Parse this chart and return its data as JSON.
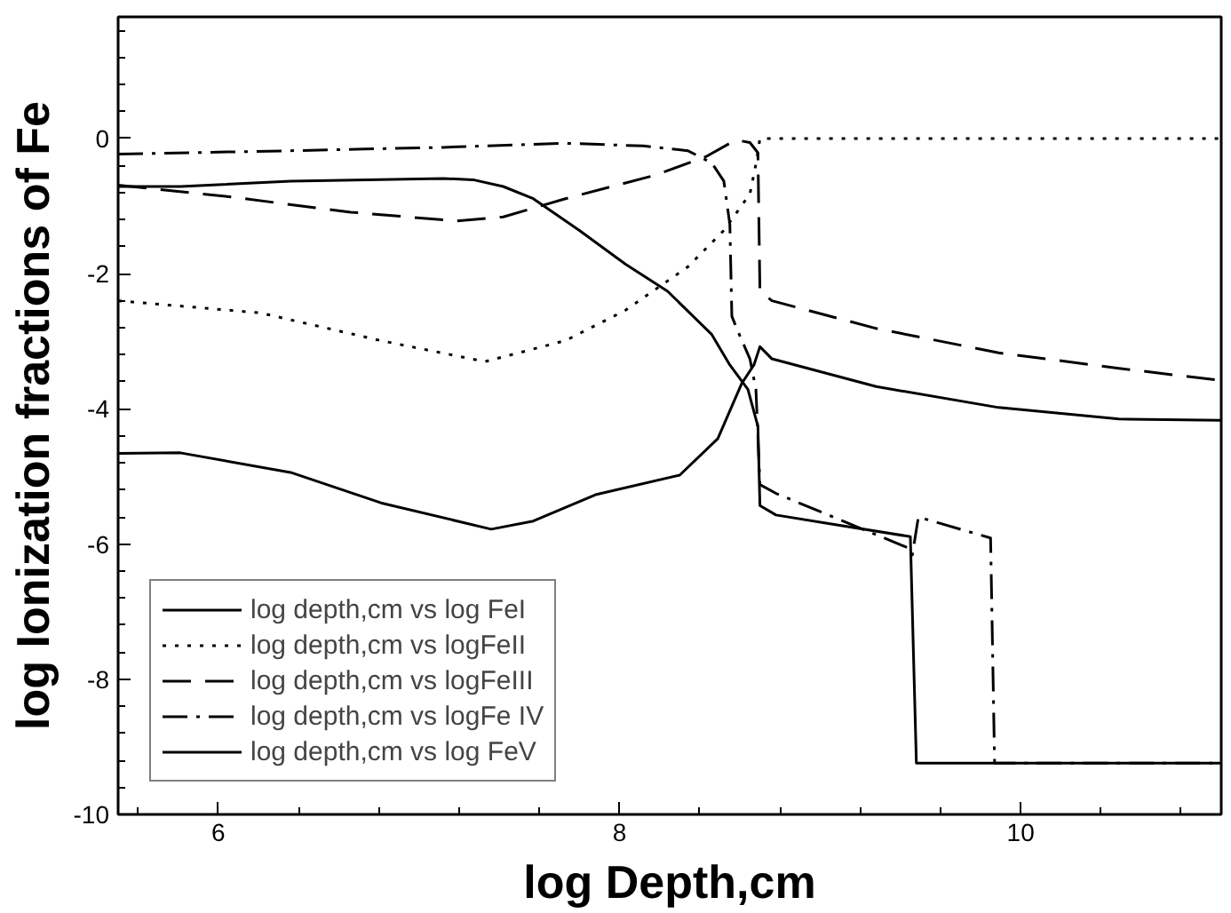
{
  "chart_data": {
    "type": "line",
    "xlabel": "log Depth,cm",
    "ylabel": "log Ionization fractions of Fe",
    "xlim": [
      5.5,
      11
    ],
    "ylim": [
      -10,
      1.8
    ],
    "xticks": [
      {
        "value": 5.6,
        "label": null
      },
      6,
      {
        "value": 6.4,
        "label": null
      },
      {
        "value": 6.8,
        "label": null
      },
      {
        "value": 7.2,
        "label": null
      },
      {
        "value": 7.6,
        "label": null
      },
      8,
      {
        "value": 8.4,
        "label": null
      },
      {
        "value": 8.8,
        "label": null
      },
      {
        "value": 9.2,
        "label": null
      },
      {
        "value": 9.6,
        "label": null
      },
      10,
      {
        "value": 10.4,
        "label": null
      },
      {
        "value": 10.8,
        "label": null
      }
    ],
    "yticks": [
      -10,
      {
        "value": -9.6,
        "label": null
      },
      {
        "value": -9.2,
        "label": null
      },
      -8,
      {
        "value": -8.8,
        "label": null
      },
      {
        "value": -8.4,
        "label": null
      },
      {
        "value": -7.6,
        "label": null
      },
      {
        "value": -7.2,
        "label": null
      },
      -6,
      {
        "value": -6.8,
        "label": null
      },
      {
        "value": -6.4,
        "label": null
      },
      {
        "value": -5.6,
        "label": null
      },
      {
        "value": -5.2,
        "label": null
      },
      -4,
      {
        "value": -4.8,
        "label": null
      },
      {
        "value": -4.4,
        "label": null
      },
      {
        "value": -3.6,
        "label": null
      },
      {
        "value": -3.2,
        "label": null
      },
      -2,
      {
        "value": -2.8,
        "label": null
      },
      {
        "value": -2.4,
        "label": null
      },
      {
        "value": -1.6,
        "label": null
      },
      {
        "value": -1.2,
        "label": null
      },
      0,
      {
        "value": -0.8,
        "label": null
      },
      {
        "value": -0.4,
        "label": null
      },
      {
        "value": 0.4,
        "label": null
      },
      {
        "value": 0.8,
        "label": null
      },
      {
        "value": 1.2,
        "label": null
      },
      {
        "value": 1.6,
        "label": null
      }
    ],
    "grid": false,
    "legend": "bottom left",
    "marker": "none",
    "series": [
      {
        "name": "log depth,cm vs log FeI",
        "color": "#000000",
        "line_style": "solid",
        "x": [
          5.5,
          5.81,
          6.36,
          6.81,
          7.36,
          7.57,
          7.88,
          8.3,
          8.49,
          8.61,
          8.67,
          8.7,
          8.76,
          9.28,
          9.89,
          10.49,
          11.0
        ],
        "values": [
          -4.66,
          -4.65,
          -4.94,
          -5.39,
          -5.78,
          -5.66,
          -5.27,
          -4.98,
          -4.44,
          -3.62,
          -3.35,
          -3.08,
          -3.26,
          -3.67,
          -3.98,
          -4.15,
          -4.17
        ]
      },
      {
        "name": "log depth,cm vs logFeII",
        "color": "#000000",
        "line_style": "dotted",
        "x": [
          5.5,
          6.21,
          6.81,
          7.33,
          7.73,
          8.03,
          8.34,
          8.52,
          8.65,
          8.68,
          8.7,
          11.0
        ],
        "values": [
          -2.4,
          -2.58,
          -2.99,
          -3.3,
          -2.99,
          -2.54,
          -1.9,
          -1.36,
          -0.82,
          -0.38,
          0.0,
          0.0
        ]
      },
      {
        "name": "log depth,cm vs logFeIII",
        "color": "#000000",
        "line_style": "dashed",
        "x": [
          5.5,
          6.05,
          6.66,
          7.19,
          7.42,
          7.73,
          8.18,
          8.43,
          8.58,
          8.65,
          8.69,
          8.7,
          8.76,
          9.28,
          9.89,
          10.49,
          11.0
        ],
        "values": [
          -0.69,
          -0.86,
          -1.09,
          -1.22,
          -1.16,
          -0.89,
          -0.54,
          -0.27,
          -0.02,
          -0.06,
          -0.21,
          -2.26,
          -2.4,
          -2.81,
          -3.17,
          -3.4,
          -3.58
        ]
      },
      {
        "name": "log depth,cm vs logFe IV",
        "color": "#000000",
        "line_style": "dashdot",
        "x": [
          5.5,
          6.36,
          7.12,
          7.73,
          8.12,
          8.34,
          8.46,
          8.52,
          8.55,
          8.56,
          8.59,
          8.65,
          8.68,
          8.7,
          8.78,
          9.45,
          9.46,
          9.49,
          9.85,
          9.87,
          11.0
        ],
        "values": [
          -0.23,
          -0.18,
          -0.13,
          -0.07,
          -0.11,
          -0.18,
          -0.36,
          -0.63,
          -1.27,
          -2.63,
          -2.85,
          -3.26,
          -3.71,
          -5.12,
          -5.25,
          -6.07,
          -6.16,
          -5.6,
          -5.91,
          -9.24,
          -9.24
        ]
      },
      {
        "name": "log depth,cm vs log FeV",
        "color": "#000000",
        "line_style": "solid",
        "x": [
          5.5,
          5.81,
          6.36,
          7.12,
          7.27,
          7.42,
          7.57,
          7.8,
          8.03,
          8.24,
          8.46,
          8.55,
          8.64,
          8.69,
          8.7,
          8.78,
          9.07,
          9.45,
          9.48,
          11.0
        ],
        "values": [
          -0.71,
          -0.71,
          -0.63,
          -0.59,
          -0.61,
          -0.71,
          -0.89,
          -1.36,
          -1.86,
          -2.26,
          -2.9,
          -3.35,
          -3.71,
          -4.26,
          -5.43,
          -5.57,
          -5.71,
          -5.89,
          -9.24,
          -9.24
        ]
      }
    ]
  }
}
